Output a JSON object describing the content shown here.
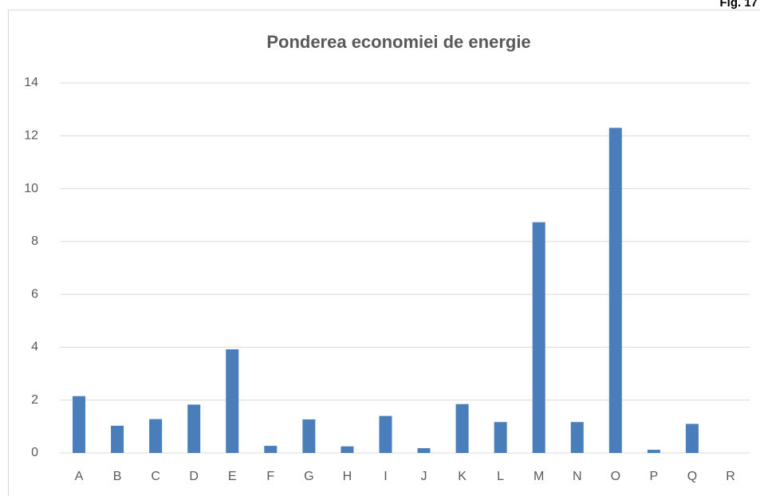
{
  "figure_label": "Fig. 17",
  "chart_data": {
    "type": "bar",
    "title": "Ponderea economiei de energie",
    "categories": [
      "A",
      "B",
      "C",
      "D",
      "E",
      "F",
      "G",
      "H",
      "I",
      "J",
      "K",
      "L",
      "M",
      "N",
      "O",
      "P",
      "Q",
      "R"
    ],
    "values": [
      2.15,
      1.03,
      1.28,
      1.83,
      3.92,
      0.27,
      1.27,
      0.25,
      1.4,
      0.18,
      1.85,
      1.17,
      8.73,
      1.17,
      12.3,
      0.12,
      1.1,
      0
    ],
    "color": "#4a7ebb",
    "ylim": [
      0,
      14
    ],
    "yticks": [
      0,
      2,
      4,
      6,
      8,
      10,
      12,
      14
    ],
    "grid": true
  }
}
